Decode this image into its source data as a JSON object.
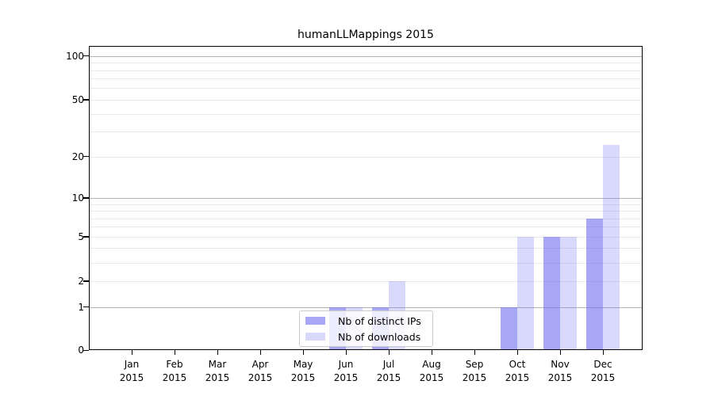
{
  "chart_data": {
    "type": "bar",
    "title": "humanLLMappings 2015",
    "categories": [
      "Jan",
      "Feb",
      "Mar",
      "Apr",
      "May",
      "Jun",
      "Jul",
      "Aug",
      "Sep",
      "Oct",
      "Nov",
      "Dec"
    ],
    "year_label": "2015",
    "series": [
      {
        "name": "Nb of distinct IPs",
        "color": "rgba(120,120,240,0.65)",
        "values": [
          0,
          0,
          0,
          0,
          0,
          1,
          1,
          0,
          0,
          1,
          5,
          7
        ]
      },
      {
        "name": "Nb of downloads",
        "color": "rgba(120,120,240,0.28)",
        "values": [
          0,
          0,
          0,
          0,
          0,
          1,
          2,
          0,
          0,
          5,
          5,
          24
        ]
      }
    ],
    "yticks": [
      100,
      50,
      20,
      10,
      5,
      2,
      1,
      0
    ],
    "minor_grid_values": [
      2,
      3,
      4,
      5,
      6,
      7,
      8,
      9,
      20,
      30,
      40,
      50,
      60,
      70,
      80,
      90
    ],
    "major_grid_values": [
      1,
      10,
      100
    ],
    "scale": "log1p",
    "ylim": [
      0,
      110
    ],
    "xlabel": "",
    "ylabel": "",
    "grid": "horizontal",
    "legend_position": "bottom-center",
    "colors": {
      "major_grid": "#b2b2b2",
      "minor_grid": "#e9e9e9",
      "frame": "#000000",
      "text": "#000000",
      "background": "#ffffff"
    }
  }
}
